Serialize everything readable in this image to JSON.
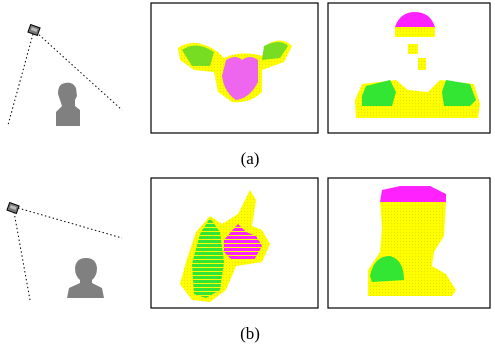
{
  "figure": {
    "subfigures": [
      {
        "label": "(a)"
      },
      {
        "label": "(b)"
      }
    ]
  }
}
